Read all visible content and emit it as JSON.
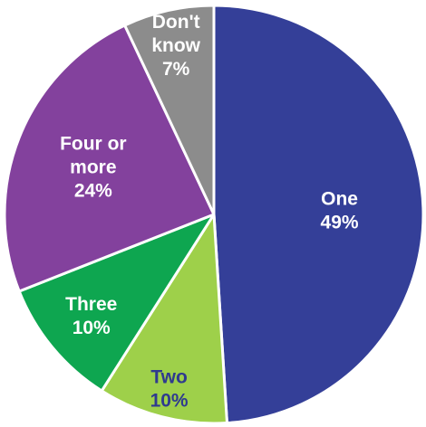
{
  "chart_data": {
    "type": "pie",
    "start_angle_deg": 0,
    "direction": "clockwise",
    "slices": [
      {
        "label": "One",
        "value": 49,
        "value_label": "49%",
        "color": "#343f98",
        "text_color": "#ffffff"
      },
      {
        "label": "Two",
        "value": 10,
        "value_label": "10%",
        "color": "#9ed04a",
        "text_color": "#2f3a8f"
      },
      {
        "label": "Three",
        "value": 10,
        "value_label": "10%",
        "color": "#0ea650",
        "text_color": "#ffffff"
      },
      {
        "label": "Four or more",
        "value": 24,
        "value_label": "24%",
        "color": "#83419d",
        "text_color": "#ffffff"
      },
      {
        "label": "Don't know",
        "value": 7,
        "value_label": "7%",
        "color": "#8c8c8c",
        "text_color": "#ffffff"
      }
    ]
  }
}
